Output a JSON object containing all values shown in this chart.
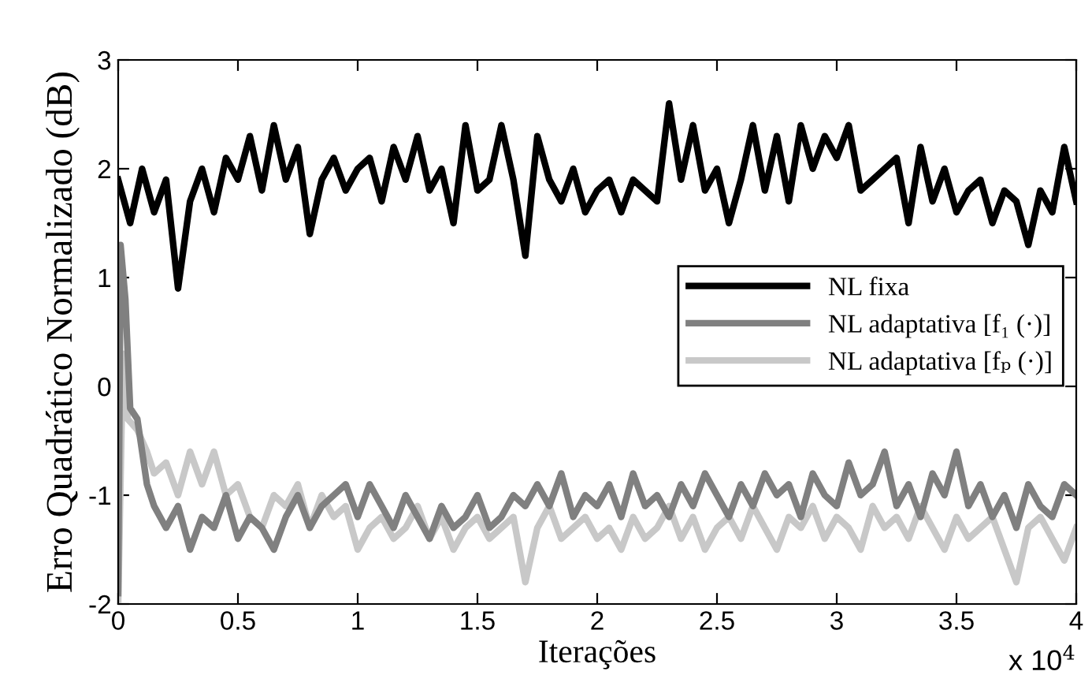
{
  "chart_data": {
    "type": "line",
    "xlabel": "Iterações",
    "ylabel": "Erro Quadrático Normalizado (dB)",
    "xlim": [
      0,
      4
    ],
    "xticks": [
      0,
      0.5,
      1,
      1.5,
      2,
      2.5,
      3,
      3.5,
      4
    ],
    "ylim": [
      -2,
      3
    ],
    "yticks": [
      -2,
      -1,
      0,
      1,
      2,
      3
    ],
    "grid": false,
    "legend": "right",
    "line_style": "solid",
    "marker": "none",
    "annotations": [
      "x 10$^{4}$"
    ],
    "series": [
      {
        "name": "NL fixa",
        "color": "#000000",
        "x": [
          0,
          0.05,
          0.1,
          0.15,
          0.2,
          0.25,
          0.3,
          0.35,
          0.4,
          0.45,
          0.5,
          0.55,
          0.6,
          0.65,
          0.7,
          0.75,
          0.8,
          0.85,
          0.9,
          0.95,
          1.0,
          1.05,
          1.1,
          1.15,
          1.2,
          1.25,
          1.3,
          1.35,
          1.4,
          1.45,
          1.5,
          1.55,
          1.6,
          1.65,
          1.7,
          1.75,
          1.8,
          1.85,
          1.9,
          1.95,
          2.0,
          2.05,
          2.1,
          2.15,
          2.2,
          2.25,
          2.3,
          2.35,
          2.4,
          2.45,
          2.5,
          2.55,
          2.6,
          2.65,
          2.7,
          2.75,
          2.8,
          2.85,
          2.9,
          2.95,
          3.0,
          3.05,
          3.1,
          3.15,
          3.2,
          3.25,
          3.3,
          3.35,
          3.4,
          3.45,
          3.5,
          3.55,
          3.6,
          3.65,
          3.7,
          3.75,
          3.8,
          3.85,
          3.9,
          3.95,
          4.0
        ],
        "values": [
          1.9,
          1.5,
          2.0,
          1.6,
          1.9,
          0.9,
          1.7,
          2.0,
          1.6,
          2.1,
          1.9,
          2.3,
          1.8,
          2.4,
          1.9,
          2.2,
          1.4,
          1.9,
          2.1,
          1.8,
          2.0,
          2.1,
          1.7,
          2.2,
          1.9,
          2.3,
          1.8,
          2.0,
          1.5,
          2.4,
          1.8,
          1.9,
          2.4,
          1.9,
          1.2,
          2.3,
          1.9,
          1.7,
          2.0,
          1.6,
          1.8,
          1.9,
          1.6,
          1.9,
          1.8,
          1.7,
          2.6,
          1.9,
          2.4,
          1.8,
          2.0,
          1.5,
          1.9,
          2.4,
          1.8,
          2.3,
          1.7,
          2.4,
          2.0,
          2.3,
          2.1,
          2.4,
          1.8,
          1.9,
          2.0,
          2.1,
          1.5,
          2.2,
          1.7,
          2.0,
          1.6,
          1.8,
          1.9,
          1.5,
          1.8,
          1.7,
          1.3,
          1.8,
          1.6,
          2.2,
          1.7
        ]
      },
      {
        "name": "NL adaptativa [f₁ (·)]",
        "color": "#808080",
        "x": [
          0,
          0.01,
          0.03,
          0.05,
          0.08,
          0.12,
          0.15,
          0.2,
          0.25,
          0.3,
          0.35,
          0.4,
          0.45,
          0.5,
          0.55,
          0.6,
          0.65,
          0.7,
          0.75,
          0.8,
          0.85,
          0.9,
          0.95,
          1.0,
          1.05,
          1.1,
          1.15,
          1.2,
          1.25,
          1.3,
          1.35,
          1.4,
          1.45,
          1.5,
          1.55,
          1.6,
          1.65,
          1.7,
          1.75,
          1.8,
          1.85,
          1.9,
          1.95,
          2.0,
          2.05,
          2.1,
          2.15,
          2.2,
          2.25,
          2.3,
          2.35,
          2.4,
          2.45,
          2.5,
          2.55,
          2.6,
          2.65,
          2.7,
          2.75,
          2.8,
          2.85,
          2.9,
          2.95,
          3.0,
          3.05,
          3.1,
          3.15,
          3.2,
          3.25,
          3.3,
          3.35,
          3.4,
          3.45,
          3.5,
          3.55,
          3.6,
          3.65,
          3.7,
          3.75,
          3.8,
          3.85,
          3.9,
          3.95,
          4.0
        ],
        "values": [
          -1.9,
          1.3,
          0.8,
          -0.2,
          -0.3,
          -0.9,
          -1.1,
          -1.3,
          -1.1,
          -1.5,
          -1.2,
          -1.3,
          -1.0,
          -1.4,
          -1.2,
          -1.3,
          -1.5,
          -1.2,
          -1.0,
          -1.3,
          -1.1,
          -1.0,
          -0.9,
          -1.2,
          -0.9,
          -1.1,
          -1.3,
          -1.0,
          -1.2,
          -1.4,
          -1.1,
          -1.3,
          -1.2,
          -1.0,
          -1.3,
          -1.2,
          -1.0,
          -1.1,
          -0.9,
          -1.1,
          -0.8,
          -1.2,
          -1.0,
          -1.1,
          -0.9,
          -1.2,
          -0.8,
          -1.1,
          -1.0,
          -1.2,
          -0.9,
          -1.1,
          -0.8,
          -1.0,
          -1.2,
          -0.9,
          -1.1,
          -0.8,
          -1.0,
          -0.9,
          -1.2,
          -0.8,
          -1.0,
          -1.1,
          -0.7,
          -1.0,
          -0.9,
          -0.6,
          -1.1,
          -0.9,
          -1.2,
          -0.8,
          -1.0,
          -0.6,
          -1.1,
          -0.9,
          -1.2,
          -1.0,
          -1.3,
          -0.9,
          -1.1,
          -1.2,
          -0.9,
          -1.0
        ]
      },
      {
        "name": "NL adaptativa [fₚ (·)]",
        "color": "#c8c8c8",
        "x": [
          0,
          0.02,
          0.04,
          0.08,
          0.12,
          0.15,
          0.2,
          0.25,
          0.3,
          0.35,
          0.4,
          0.45,
          0.5,
          0.55,
          0.6,
          0.65,
          0.7,
          0.75,
          0.8,
          0.85,
          0.9,
          0.95,
          1.0,
          1.05,
          1.1,
          1.15,
          1.2,
          1.25,
          1.3,
          1.35,
          1.4,
          1.45,
          1.5,
          1.55,
          1.6,
          1.65,
          1.7,
          1.75,
          1.8,
          1.85,
          1.9,
          1.95,
          2.0,
          2.05,
          2.1,
          2.15,
          2.2,
          2.25,
          2.3,
          2.35,
          2.4,
          2.45,
          2.5,
          2.55,
          2.6,
          2.65,
          2.7,
          2.75,
          2.8,
          2.85,
          2.9,
          2.95,
          3.0,
          3.05,
          3.1,
          3.15,
          3.2,
          3.25,
          3.3,
          3.35,
          3.4,
          3.45,
          3.5,
          3.55,
          3.6,
          3.65,
          3.7,
          3.75,
          3.8,
          3.85,
          3.9,
          3.95,
          4.0
        ],
        "values": [
          -2.0,
          0.3,
          -0.3,
          -0.4,
          -0.6,
          -0.8,
          -0.7,
          -1.0,
          -0.6,
          -0.9,
          -0.6,
          -1.0,
          -0.9,
          -1.2,
          -1.3,
          -1.0,
          -1.1,
          -0.9,
          -1.3,
          -1.0,
          -1.2,
          -1.1,
          -1.5,
          -1.3,
          -1.2,
          -1.4,
          -1.3,
          -1.1,
          -1.4,
          -1.2,
          -1.5,
          -1.3,
          -1.2,
          -1.4,
          -1.3,
          -1.2,
          -1.8,
          -1.3,
          -1.1,
          -1.4,
          -1.3,
          -1.2,
          -1.4,
          -1.3,
          -1.5,
          -1.2,
          -1.4,
          -1.3,
          -1.1,
          -1.4,
          -1.2,
          -1.5,
          -1.3,
          -1.2,
          -1.4,
          -1.1,
          -1.3,
          -1.5,
          -1.2,
          -1.3,
          -1.1,
          -1.4,
          -1.2,
          -1.3,
          -1.5,
          -1.1,
          -1.3,
          -1.2,
          -1.4,
          -1.1,
          -1.3,
          -1.5,
          -1.2,
          -1.4,
          -1.3,
          -1.2,
          -1.5,
          -1.8,
          -1.3,
          -1.2,
          -1.4,
          -1.6,
          -1.3
        ]
      }
    ]
  }
}
